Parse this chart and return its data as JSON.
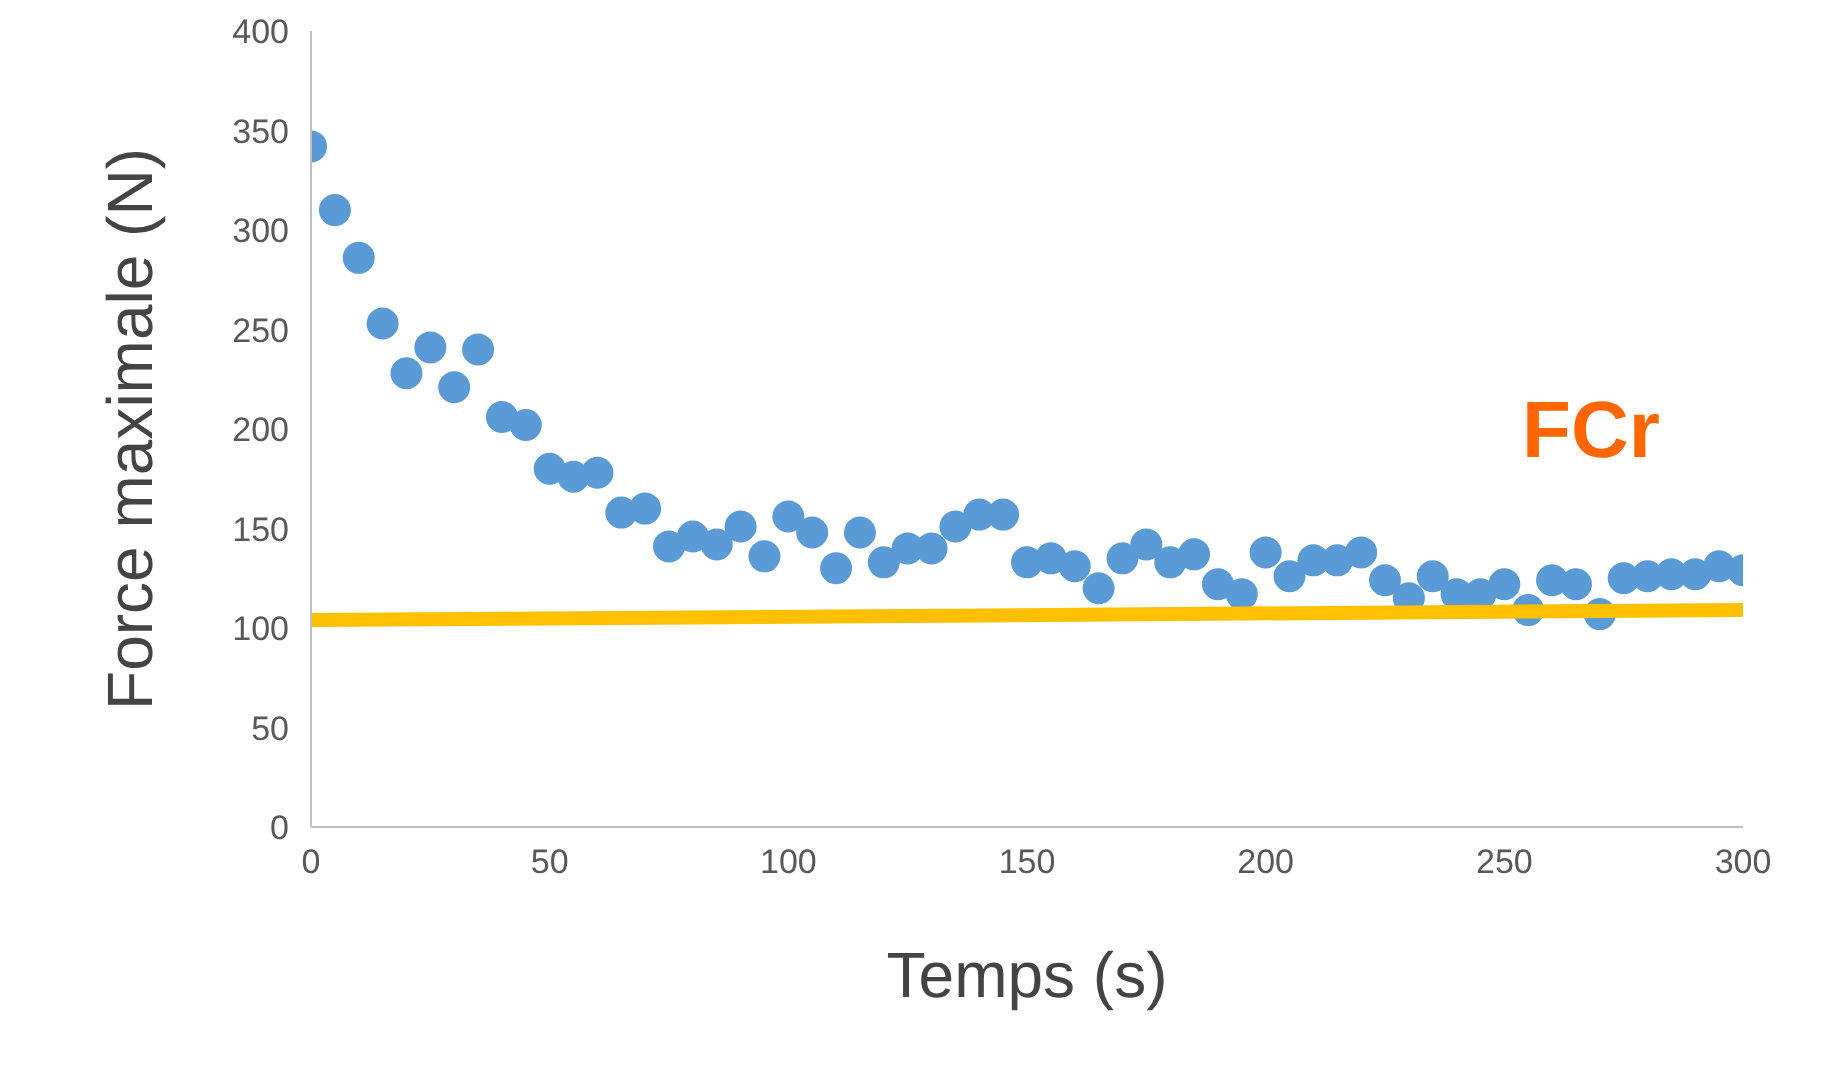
{
  "chart_data": {
    "type": "scatter",
    "xlabel": "Temps (s)",
    "ylabel": "Force maximale (N)",
    "xlim": [
      0,
      300
    ],
    "ylim": [
      0,
      400
    ],
    "xticks": [
      0,
      50,
      100,
      150,
      200,
      250,
      300
    ],
    "yticks": [
      0,
      50,
      100,
      150,
      200,
      250,
      300,
      350,
      400
    ],
    "grid": false,
    "series": [
      {
        "marker": "circle",
        "color": "#5b9bd5",
        "x": [
          0,
          5,
          10,
          15,
          20,
          25,
          30,
          35,
          40,
          45,
          50,
          55,
          60,
          65,
          70,
          75,
          80,
          85,
          90,
          95,
          100,
          105,
          110,
          115,
          120,
          125,
          130,
          135,
          140,
          145,
          150,
          155,
          160,
          165,
          170,
          175,
          180,
          185,
          190,
          195,
          200,
          205,
          210,
          215,
          220,
          225,
          230,
          235,
          240,
          245,
          250,
          255,
          260,
          265,
          270,
          275,
          280,
          285,
          290,
          295,
          300
        ],
        "values": [
          342,
          310,
          286,
          253,
          228,
          241,
          221,
          240,
          206,
          202,
          180,
          176,
          178,
          158,
          160,
          141,
          146,
          142,
          151,
          136,
          156,
          148,
          130,
          148,
          133,
          140,
          140,
          151,
          157,
          157,
          133,
          135,
          131,
          120,
          135,
          142,
          133,
          137,
          122,
          117,
          138,
          126,
          134,
          134,
          138,
          124,
          115,
          126,
          117,
          117,
          122,
          109,
          124,
          122,
          107,
          125,
          126,
          127,
          127,
          131,
          129
        ]
      },
      {
        "type": "line",
        "color": "#ffc000",
        "x": [
          0,
          300
        ],
        "values": [
          104,
          109
        ]
      }
    ],
    "annotations": [
      "FCr"
    ]
  }
}
